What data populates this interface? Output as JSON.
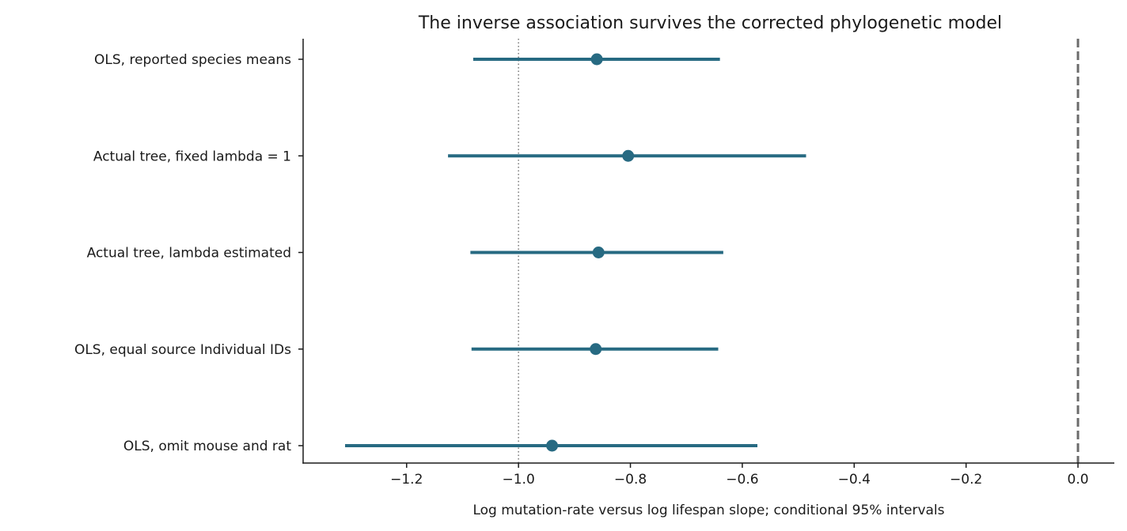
{
  "chart_data": {
    "type": "forest",
    "title": "The inverse association survives the corrected phylogenetic model",
    "xlabel": "Log mutation-rate versus log lifespan slope; conditional 95% intervals",
    "ylabel": "",
    "xlim": [
      -1.385,
      0.065
    ],
    "x_ticks": [
      "−1.2",
      "−1.0",
      "−0.8",
      "−0.6",
      "−0.4",
      "−0.2",
      "0.0"
    ],
    "x_tick_values": [
      -1.2,
      -1.0,
      -0.8,
      -0.6,
      -0.4,
      -0.2,
      0.0
    ],
    "categories": [
      "OLS, reported species means",
      "Actual tree, fixed lambda = 1",
      "Actual tree, lambda estimated",
      "OLS, equal source Individual IDs",
      "OLS, omit mouse and rat"
    ],
    "estimates": [
      -0.86,
      -0.804,
      -0.857,
      -0.862,
      -0.94
    ],
    "lower": [
      -1.081,
      -1.126,
      -1.086,
      -1.084,
      -1.31
    ],
    "upper": [
      -0.64,
      -0.486,
      -0.634,
      -0.643,
      -0.573
    ],
    "reference_lines": [
      {
        "x": -1.0,
        "style": "dotted"
      },
      {
        "x": 0.0,
        "style": "dashed"
      }
    ],
    "grid": false,
    "legend": "none",
    "colors": {
      "series": "#276a82",
      "axis": "#1a1a1a",
      "dotted_ref": "#777777",
      "dashed_ref": "#6b6b6b"
    }
  }
}
